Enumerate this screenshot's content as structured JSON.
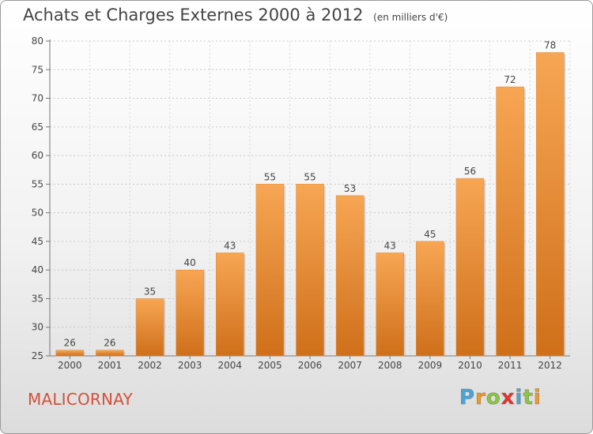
{
  "title": "Achats et Charges Externes 2000 à 2012",
  "subtitle": "(en milliers d'€)",
  "commune": "MALICORNAY",
  "brand": {
    "text": "Proxiti",
    "letters": [
      "P",
      "r",
      "o",
      "x",
      "i",
      "t",
      "i"
    ],
    "colors": [
      "#4aa3d8",
      "#f29a1e",
      "#8cc63f",
      "#e8322c",
      "#4aa3d8",
      "#8cc63f",
      "#f29a1e"
    ]
  },
  "colors": {
    "bar_top": "#f7a654",
    "bar_bottom": "#cf6f1a",
    "commune": "#d2513a"
  },
  "chart_data": {
    "type": "bar",
    "title": "Achats et Charges Externes 2000 à 2012",
    "subtitle": "(en milliers d'€)",
    "categories": [
      "2000",
      "2001",
      "2002",
      "2003",
      "2004",
      "2005",
      "2006",
      "2007",
      "2008",
      "2009",
      "2010",
      "2011",
      "2012"
    ],
    "values": [
      26,
      26,
      35,
      40,
      43,
      55,
      55,
      53,
      43,
      45,
      56,
      72,
      78
    ],
    "ylim": [
      25,
      80
    ],
    "yticks": [
      25,
      30,
      35,
      40,
      45,
      50,
      55,
      60,
      65,
      70,
      75,
      80
    ],
    "grid": true,
    "xlabel": "",
    "ylabel": ""
  }
}
